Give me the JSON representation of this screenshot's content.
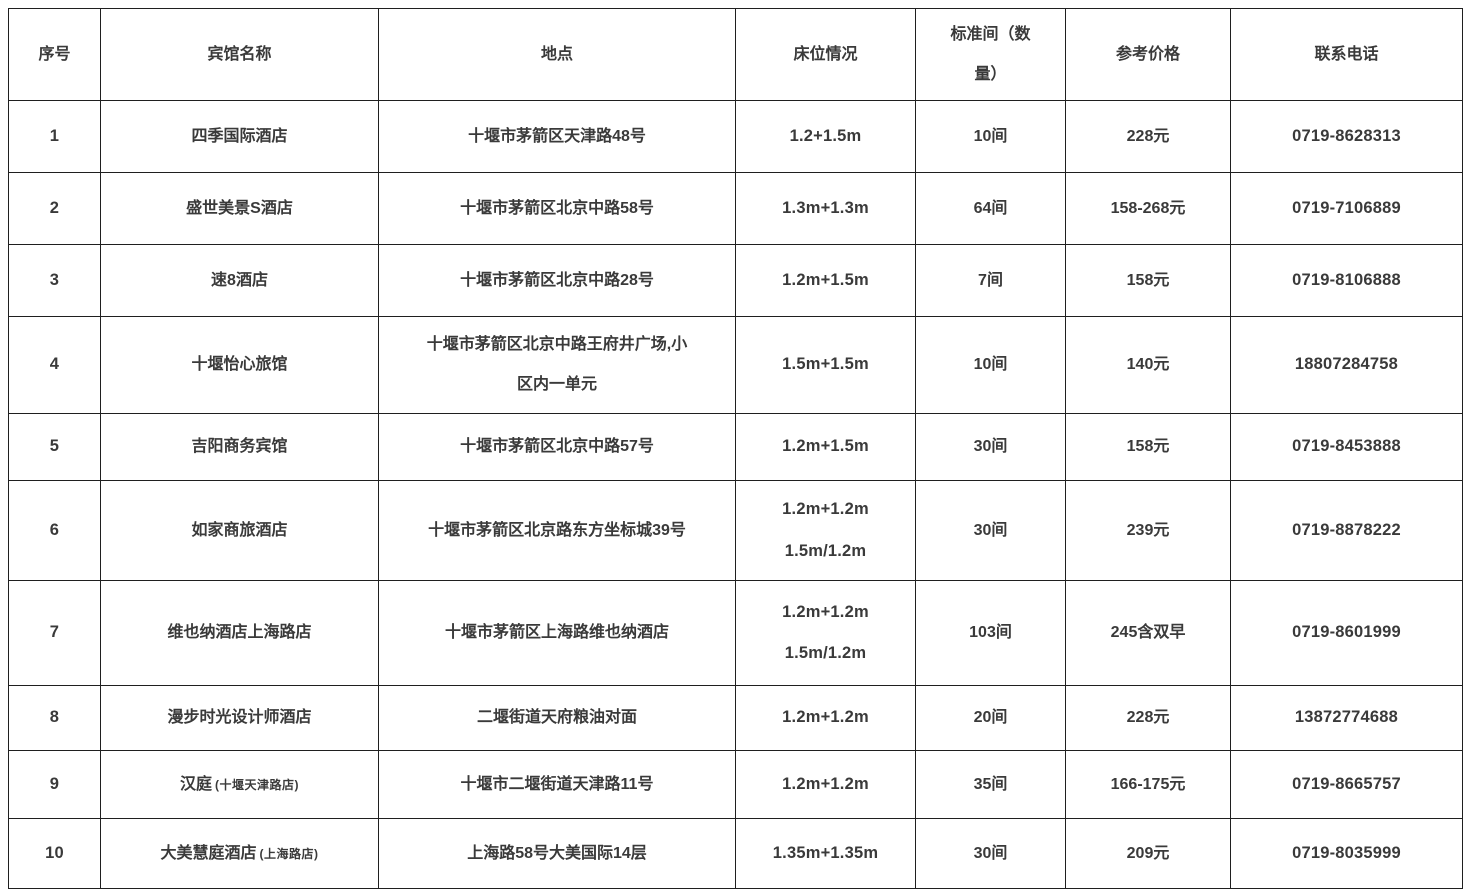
{
  "table": {
    "text_color": "#3a3a3a",
    "border_color": "#1f1f1f",
    "background_color": "#ffffff",
    "headers": [
      {
        "id": "index",
        "label": "序号"
      },
      {
        "id": "name",
        "label": "宾馆名称"
      },
      {
        "id": "location",
        "label": "地点"
      },
      {
        "id": "beds",
        "label": "床位情况"
      },
      {
        "id": "rooms",
        "label": [
          "标准间（数",
          "量）"
        ]
      },
      {
        "id": "price",
        "label": "参考价格"
      },
      {
        "id": "phone",
        "label": "联系电话"
      }
    ],
    "rows": [
      {
        "index": "1",
        "name": {
          "main": "四季国际酒店",
          "sub": ""
        },
        "location": "十堰市茅箭区天津路48号",
        "beds": "1.2+1.5m",
        "rooms": "10间",
        "price": "228元",
        "phone": "0719-8628313"
      },
      {
        "index": "2",
        "name": {
          "main": "盛世美景S酒店",
          "sub": ""
        },
        "location": "十堰市茅箭区北京中路58号",
        "beds": "1.3m+1.3m",
        "rooms": "64间",
        "price": "158-268元",
        "phone": "0719-7106889"
      },
      {
        "index": "3",
        "name": {
          "main": "速8酒店",
          "sub": ""
        },
        "location": "十堰市茅箭区北京中路28号",
        "beds": "1.2m+1.5m",
        "rooms": "7间",
        "price": "158元",
        "phone": "0719-8106888"
      },
      {
        "index": "4",
        "name": {
          "main": "十堰怡心旅馆",
          "sub": ""
        },
        "location": [
          "十堰市茅箭区北京中路王府井广场,小",
          "区内一单元"
        ],
        "beds": "1.5m+1.5m",
        "rooms": "10间",
        "price": "140元",
        "phone": "18807284758"
      },
      {
        "index": "5",
        "name": {
          "main": "吉阳商务宾馆",
          "sub": ""
        },
        "location": "十堰市茅箭区北京中路57号",
        "beds": "1.2m+1.5m",
        "rooms": "30间",
        "price": "158元",
        "phone": "0719-8453888"
      },
      {
        "index": "6",
        "name": {
          "main": "如家商旅酒店",
          "sub": ""
        },
        "location": "十堰市茅箭区北京路东方坐标城39号",
        "beds": [
          "1.2m+1.2m",
          "1.5m/1.2m"
        ],
        "rooms": "30间",
        "price": "239元",
        "phone": "0719-8878222"
      },
      {
        "index": "7",
        "name": {
          "main": "维也纳酒店上海路店",
          "sub": ""
        },
        "location": "十堰市茅箭区上海路维也纳酒店",
        "beds": [
          "1.2m+1.2m",
          "1.5m/1.2m"
        ],
        "rooms": "103间",
        "price": "245含双早",
        "phone": "0719-8601999"
      },
      {
        "index": "8",
        "name": {
          "main": "漫步时光设计师酒店",
          "sub": ""
        },
        "location": "二堰街道天府粮油对面",
        "beds": "1.2m+1.2m",
        "rooms": "20间",
        "price": "228元",
        "phone": "13872774688"
      },
      {
        "index": "9",
        "name": {
          "main": "汉庭",
          "sub": "(十堰天津路店)"
        },
        "location": "十堰市二堰街道天津路11号",
        "beds": "1.2m+1.2m",
        "rooms": "35间",
        "price": "166-175元",
        "phone": "0719-8665757"
      },
      {
        "index": "10",
        "name": {
          "main": "大美慧庭酒店",
          "sub": "(上海路店)"
        },
        "location": "上海路58号大美国际14层",
        "beds": "1.35m+1.35m",
        "rooms": "30间",
        "price": "209元",
        "phone": "0719-8035999"
      }
    ]
  }
}
